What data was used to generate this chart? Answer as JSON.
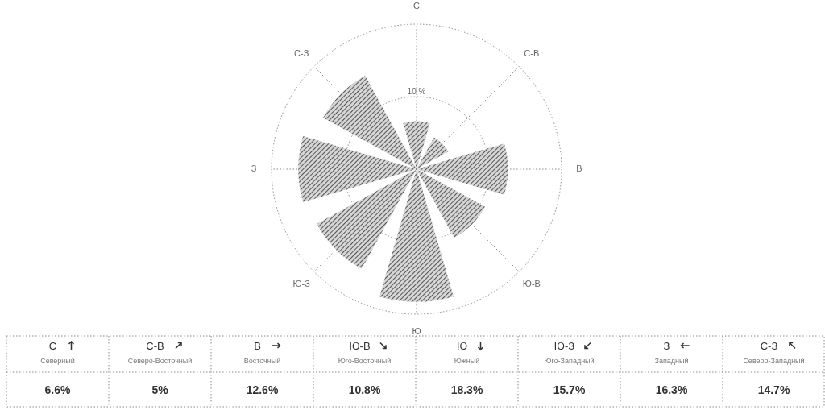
{
  "chart_data": {
    "type": "other",
    "categories": [
      "С",
      "С-В",
      "В",
      "Ю-В",
      "Ю",
      "Ю-З",
      "З",
      "С-З"
    ],
    "values": [
      6.6,
      5,
      12.6,
      10.8,
      18.3,
      15.7,
      16.3,
      14.7
    ],
    "value_labels": [
      "6.6%",
      "5%",
      "12.6%",
      "10.8%",
      "18.3%",
      "15.7%",
      "16.3%",
      "14.7%"
    ],
    "annotations": [
      "10 %",
      "Северный",
      "Северо-Восточный",
      "Восточный",
      "Юго-Восточный",
      "Южный",
      "Юго-Западный",
      "Западный",
      "Северо-Западный"
    ],
    "color": "#555555"
  }
}
